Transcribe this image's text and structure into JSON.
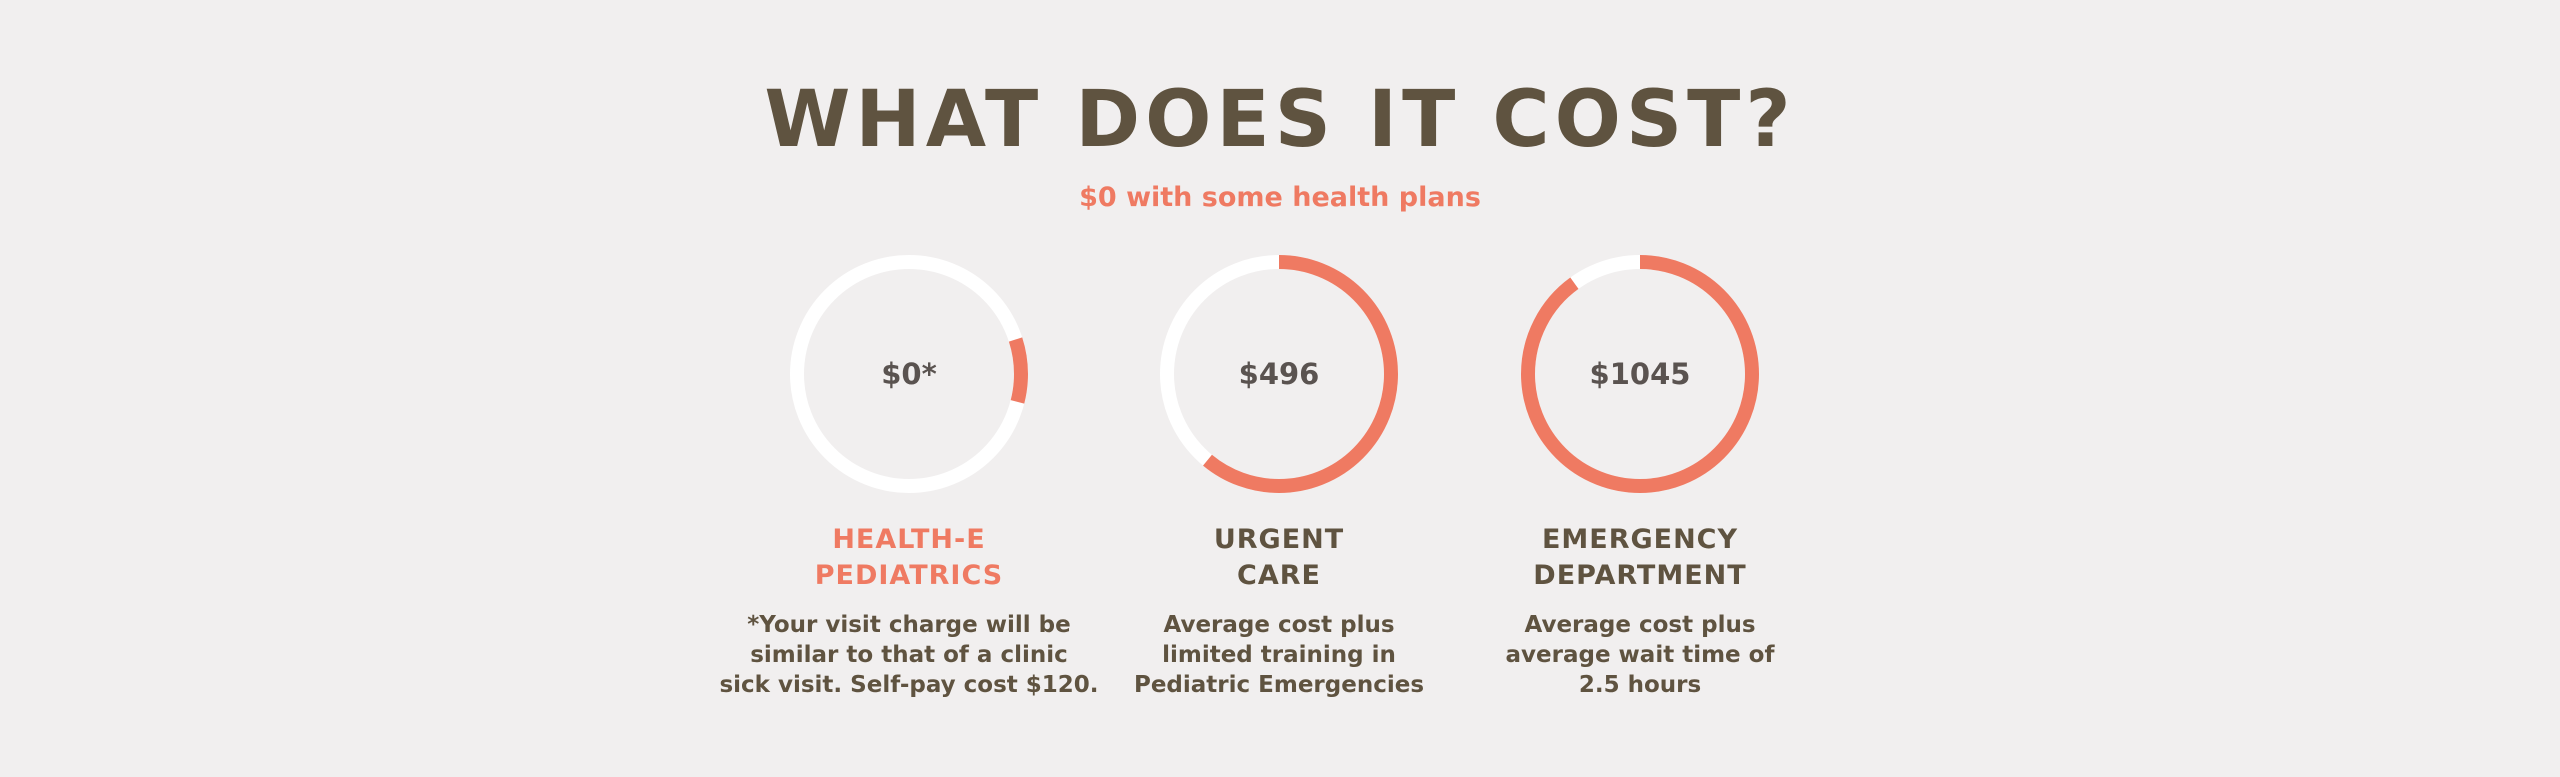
{
  "header": {
    "title": "WHAT DOES IT COST?",
    "subtitle": "$0 with some health plans"
  },
  "colors": {
    "accent": "#ef7a62",
    "track": "#ffffff",
    "heading": "#5f5340",
    "background": "#f1efef"
  },
  "options": [
    {
      "value_label": "$0*",
      "title": "HEALTH-E\nPEDIATRICS",
      "description": "*Your visit charge will be\nsimilar to that of a clinic\nsick visit. Self-pay cost $120.",
      "highlighted": true,
      "arc_start_fraction": 0.2,
      "arc_fraction": 0.09
    },
    {
      "value_label": "$496",
      "title": "URGENT\nCARE",
      "description": "Average cost plus\nlimited training in\nPediatric Emergencies",
      "highlighted": false,
      "arc_start_fraction": 0.0,
      "arc_fraction": 0.61
    },
    {
      "value_label": "$1045",
      "title": "EMERGENCY\nDEPARTMENT",
      "description": "Average cost plus\naverage wait time of\n2.5 hours",
      "highlighted": false,
      "arc_start_fraction": 0.0,
      "arc_fraction": 0.9
    }
  ]
}
